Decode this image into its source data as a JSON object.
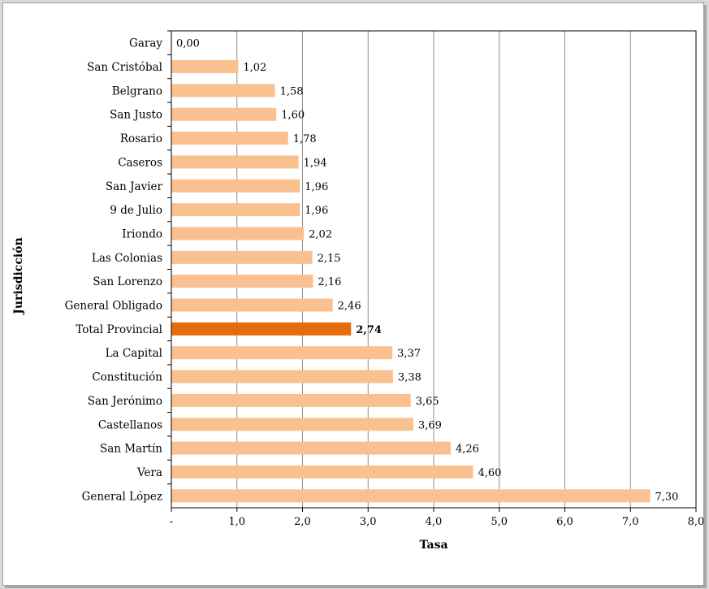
{
  "chart_data": {
    "type": "bar",
    "orientation": "horizontal",
    "title": "",
    "xlabel": "Tasa",
    "ylabel": "Jurisdicción",
    "xlim": [
      0,
      8
    ],
    "x_ticks": [
      "-",
      "1,0",
      "2,0",
      "3,0",
      "4,0",
      "5,0",
      "6,0",
      "7,0",
      "8,0"
    ],
    "grid": "vertical",
    "legend": "none",
    "categories": [
      "Garay",
      "San Cristóbal",
      "Belgrano",
      "San Justo",
      "Rosario",
      "Caseros",
      "San Javier",
      "9 de Julio",
      "Iriondo",
      "Las Colonias",
      "San Lorenzo",
      "General Obligado",
      "Total Provincial",
      "La Capital",
      "Constitución",
      "San Jerónimo",
      "Castellanos",
      "San Martín",
      "Vera",
      "General López"
    ],
    "values": [
      0.0,
      1.02,
      1.58,
      1.6,
      1.78,
      1.94,
      1.96,
      1.96,
      2.02,
      2.15,
      2.16,
      2.46,
      2.74,
      3.37,
      3.38,
      3.65,
      3.69,
      4.26,
      4.6,
      7.3
    ],
    "value_labels": [
      "0,00",
      "1,02",
      "1,58",
      "1,60",
      "1,78",
      "1,94",
      "1,96",
      "1,96",
      "2,02",
      "2,15",
      "2,16",
      "2,46",
      "2,74",
      "3,37",
      "3,38",
      "3,65",
      "3,69",
      "4,26",
      "4,60",
      "7,30"
    ],
    "highlight": "Total Provincial",
    "colors": {
      "bar": "#fac090",
      "highlight_bar": "#e46c0a",
      "zero_label": "#92d050",
      "gridline": "#8c8c8c",
      "axis": "#000000"
    }
  }
}
